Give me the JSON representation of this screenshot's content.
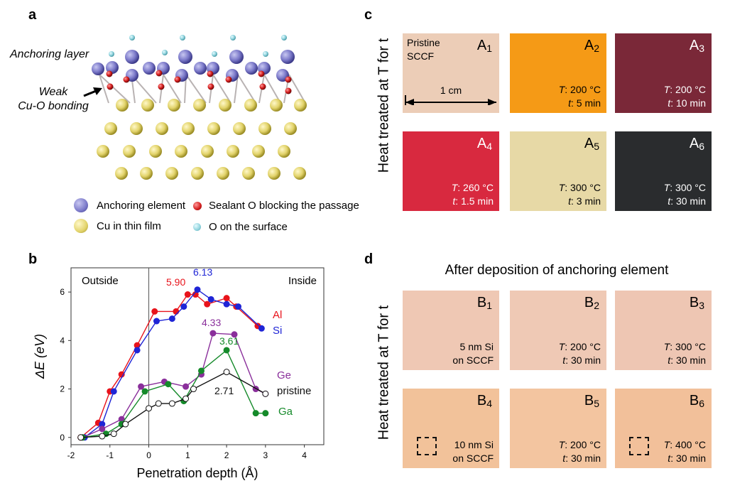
{
  "panels": {
    "a": "a",
    "b": "b",
    "c": "c",
    "d": "d"
  },
  "panel_a": {
    "anchoring_layer": "Anchoring layer",
    "weak_bonding_line1": "Weak",
    "weak_bonding_line2": "Cu-O bonding",
    "legend": {
      "anchoring_element": "Anchoring element",
      "sealant_o": "Sealant O blocking the passage",
      "cu_film": "Cu in thin film",
      "o_surface": "O on the surface"
    },
    "colors": {
      "anchor": "#7b79c9",
      "sealant": "#d21b1b",
      "cu": "#e2d36a",
      "o_surface": "#8fd3dd"
    }
  },
  "chart_data": {
    "type": "line",
    "xlabel": "Penetration depth (Å)",
    "ylabel": "ΔE (eV)",
    "xlim": [
      -2,
      4.5
    ],
    "ylim": [
      -0.3,
      7
    ],
    "xticks": [
      "-2",
      "-1",
      "0",
      "1",
      "2",
      "3",
      "4"
    ],
    "yticks": [
      "0",
      "2",
      "4",
      "6"
    ],
    "region_left": "Outside",
    "region_right": "Inside",
    "series": [
      {
        "name": "Al",
        "color": "#e8131b",
        "filled": true,
        "x": [
          -1.75,
          -1.3,
          -1.0,
          -0.7,
          -0.3,
          0.15,
          0.7,
          1.0,
          1.2,
          1.5,
          2.0,
          2.25,
          2.8
        ],
        "y": [
          0.0,
          0.6,
          1.9,
          2.6,
          3.8,
          5.2,
          5.2,
          5.9,
          5.9,
          5.5,
          5.75,
          5.4,
          4.6
        ]
      },
      {
        "name": "Si",
        "color": "#1f25d6",
        "filled": true,
        "x": [
          -1.65,
          -1.2,
          -0.9,
          -0.3,
          0.2,
          0.6,
          0.9,
          1.25,
          1.6,
          2.0,
          2.3,
          2.9
        ],
        "y": [
          0.0,
          0.55,
          1.9,
          3.6,
          4.8,
          4.9,
          5.4,
          6.1,
          5.7,
          5.5,
          5.4,
          4.5
        ]
      },
      {
        "name": "Ge",
        "color": "#8a2f9b",
        "filled": true,
        "x": [
          -1.7,
          -1.2,
          -0.7,
          -0.2,
          0.4,
          0.95,
          1.35,
          1.65,
          2.2,
          2.75,
          3.0
        ],
        "y": [
          0.0,
          0.35,
          0.75,
          2.1,
          2.3,
          2.1,
          2.6,
          4.3,
          4.25,
          2.0,
          1.8
        ]
      },
      {
        "name": "Ga",
        "color": "#158a2a",
        "filled": true,
        "x": [
          -1.7,
          -1.1,
          -0.7,
          -0.1,
          0.5,
          0.9,
          1.35,
          2.0,
          2.75,
          3.0
        ],
        "y": [
          0.0,
          0.15,
          0.55,
          1.9,
          2.2,
          1.5,
          2.75,
          3.6,
          1.0,
          1.0
        ]
      },
      {
        "name": "pristine",
        "color": "#111111",
        "filled": false,
        "x": [
          -1.75,
          -1.2,
          -0.9,
          -0.6,
          0.0,
          0.25,
          0.6,
          0.95,
          1.15,
          2.0,
          3.0
        ],
        "y": [
          0.0,
          0.05,
          0.15,
          0.55,
          1.2,
          1.4,
          1.4,
          1.6,
          2.0,
          2.7,
          1.8
        ]
      }
    ],
    "annotations": [
      {
        "text": "5.90",
        "color": "#e8131b"
      },
      {
        "text": "6.13",
        "color": "#1f25d6"
      },
      {
        "text": "4.33",
        "color": "#8a2f9b"
      },
      {
        "text": "3.61",
        "color": "#158a2a"
      },
      {
        "text": "2.71",
        "color": "#111111"
      }
    ]
  },
  "panel_c": {
    "ylabel": "Heat treated at T for t",
    "scale": "1 cm",
    "tiles": [
      {
        "tag": "A",
        "idx": "1",
        "color": "#eccdb7",
        "line1": "Pristine",
        "line2": "SCCF"
      },
      {
        "tag": "A",
        "idx": "2",
        "color": "#f59a16",
        "t1": "T",
        "v1": ": 200 °C",
        "t2": "t",
        "v2": ": 5 min"
      },
      {
        "tag": "A",
        "idx": "3",
        "color": "#7a2838",
        "t1": "T",
        "v1": ": 200 °C",
        "t2": "t",
        "v2": ": 10 min"
      },
      {
        "tag": "A",
        "idx": "4",
        "color": "#d8293f",
        "t1": "T",
        "v1": ": 260 °C",
        "t2": "t",
        "v2": ": 1.5 min"
      },
      {
        "tag": "A",
        "idx": "5",
        "color": "#e7d9a6",
        "t1": "T",
        "v1": ": 300 °C",
        "t2": "t",
        "v2": ": 3 min"
      },
      {
        "tag": "A",
        "idx": "6",
        "color": "#2a2c2e",
        "t1": "T",
        "v1": ": 300 °C",
        "t2": "t",
        "v2": ": 30 min"
      }
    ]
  },
  "panel_d": {
    "title": "After deposition of anchoring element",
    "ylabel": "Heat treated at T for t",
    "tiles": [
      {
        "tag": "B",
        "idx": "1",
        "color": "#efc8b4",
        "line1": "5 nm Si",
        "line2": "on SCCF"
      },
      {
        "tag": "B",
        "idx": "2",
        "color": "#efc9b5",
        "t1": "T",
        "v1": ": 200 °C",
        "t2": "t",
        "v2": ": 30 min"
      },
      {
        "tag": "B",
        "idx": "3",
        "color": "#eec6b3",
        "t1": "T",
        "v1": ": 300 °C",
        "t2": "t",
        "v2": ": 30 min"
      },
      {
        "tag": "B",
        "idx": "4",
        "color": "#f2c29a",
        "line1": "10 nm Si",
        "line2": "on SCCF"
      },
      {
        "tag": "B",
        "idx": "5",
        "color": "#f3c5a0",
        "t1": "T",
        "v1": ": 200 °C",
        "t2": "t",
        "v2": ": 30 min"
      },
      {
        "tag": "B",
        "idx": "6",
        "color": "#f2c09a",
        "t1": "T",
        "v1": ": 400 °C",
        "t2": "t",
        "v2": ": 30 min"
      }
    ]
  }
}
